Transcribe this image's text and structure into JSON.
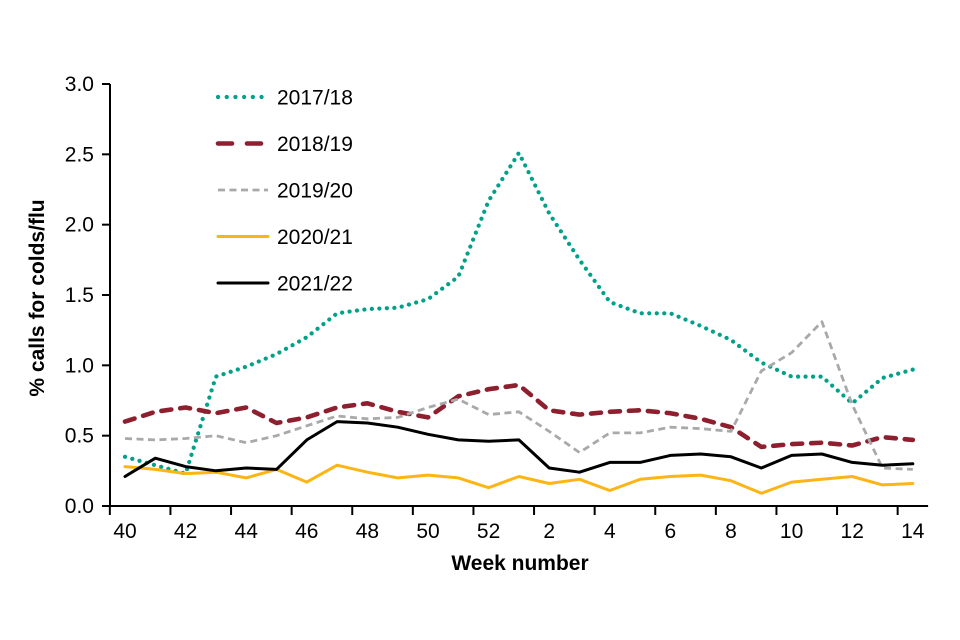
{
  "chart_data": {
    "type": "line",
    "title": "",
    "xlabel": "Week number",
    "ylabel": "% calls for colds/flu",
    "ylim": [
      0,
      3.0
    ],
    "ytick_labels": [
      "0.0",
      "0.5",
      "1.0",
      "1.5",
      "2.0",
      "2.5",
      "3.0"
    ],
    "grid": false,
    "legend_position": "top-left-inside",
    "categories": [
      "40",
      "41",
      "42",
      "43",
      "44",
      "45",
      "46",
      "47",
      "48",
      "49",
      "50",
      "51",
      "52",
      "1",
      "2",
      "3",
      "4",
      "5",
      "6",
      "7",
      "8",
      "9",
      "10",
      "11",
      "12",
      "13",
      "14"
    ],
    "xtick_labels": [
      "40",
      "42",
      "44",
      "46",
      "48",
      "50",
      "52",
      "2",
      "4",
      "6",
      "8",
      "10",
      "12",
      "14"
    ],
    "xtick_indices": [
      0,
      2,
      4,
      6,
      8,
      10,
      12,
      14,
      16,
      18,
      20,
      22,
      24,
      26
    ],
    "series": [
      {
        "name": "2017/18",
        "color": "#00a188",
        "style": "dotted",
        "values": [
          0.35,
          0.29,
          0.23,
          0.92,
          0.99,
          1.08,
          1.2,
          1.37,
          1.4,
          1.41,
          1.47,
          1.63,
          2.17,
          2.51,
          2.08,
          1.75,
          1.45,
          1.37,
          1.37,
          1.28,
          1.18,
          1.02,
          0.92,
          0.92,
          0.73,
          0.91,
          0.97
        ]
      },
      {
        "name": "2018/19",
        "color": "#8e1f2e",
        "style": "dashed-long",
        "values": [
          0.6,
          0.67,
          0.7,
          0.66,
          0.7,
          0.59,
          0.63,
          0.7,
          0.73,
          0.67,
          0.63,
          0.78,
          0.83,
          0.86,
          0.68,
          0.65,
          0.67,
          0.68,
          0.66,
          0.62,
          0.56,
          0.42,
          0.44,
          0.45,
          0.43,
          0.49,
          0.47
        ]
      },
      {
        "name": "2019/20",
        "color": "#a9a9a9",
        "style": "dashed-short",
        "values": [
          0.48,
          0.47,
          0.48,
          0.5,
          0.45,
          0.5,
          0.57,
          0.64,
          0.62,
          0.63,
          0.7,
          0.76,
          0.65,
          0.67,
          0.53,
          0.38,
          0.52,
          0.52,
          0.56,
          0.55,
          0.53,
          0.96,
          1.09,
          1.31,
          0.72,
          0.27,
          0.26
        ]
      },
      {
        "name": "2020/21",
        "color": "#fdb515",
        "style": "solid",
        "values": [
          0.28,
          0.26,
          0.23,
          0.24,
          0.2,
          0.26,
          0.17,
          0.29,
          0.24,
          0.2,
          0.22,
          0.2,
          0.13,
          0.21,
          0.16,
          0.19,
          0.11,
          0.19,
          0.21,
          0.22,
          0.18,
          0.09,
          0.17,
          0.19,
          0.21,
          0.15,
          0.16
        ]
      },
      {
        "name": "2021/22",
        "color": "#000000",
        "style": "solid",
        "values": [
          0.21,
          0.34,
          0.28,
          0.25,
          0.27,
          0.26,
          0.47,
          0.6,
          0.59,
          0.56,
          0.51,
          0.47,
          0.46,
          0.47,
          0.27,
          0.24,
          0.31,
          0.31,
          0.36,
          0.37,
          0.35,
          0.27,
          0.36,
          0.37,
          0.31,
          0.29,
          0.3
        ]
      }
    ]
  }
}
